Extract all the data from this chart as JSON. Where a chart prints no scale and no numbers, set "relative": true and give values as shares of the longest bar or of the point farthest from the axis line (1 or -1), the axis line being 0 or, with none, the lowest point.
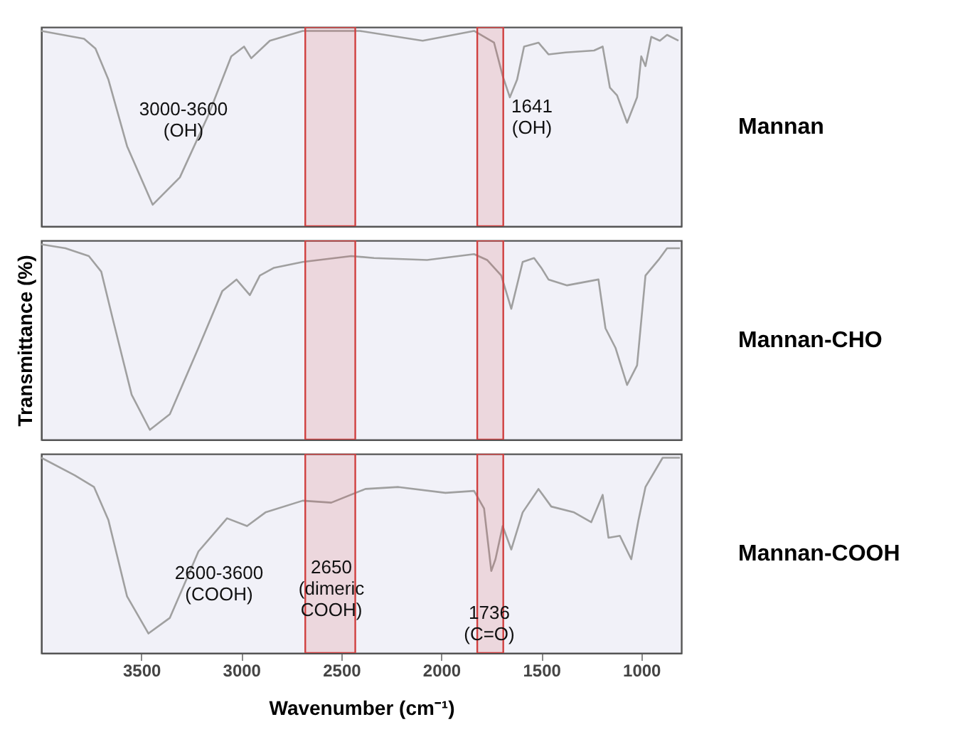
{
  "chart_data": [
    {
      "type": "line",
      "relative": true,
      "xlim": [
        4000,
        800
      ],
      "xticks": [
        3500,
        3000,
        2500,
        2000,
        1500,
        1000
      ],
      "tick_labels": false,
      "x": [
        4000,
        3786,
        3729,
        3664,
        3571,
        3443,
        3307,
        3164,
        3050,
        2986,
        2950,
        2857,
        2693,
        2407,
        2093,
        1836,
        1736,
        1693,
        1657,
        1621,
        1586,
        1514,
        1464,
        1379,
        1236,
        1193,
        1157,
        1121,
        1071,
        1021,
        1000,
        979,
        950,
        907,
        871,
        814
      ],
      "series": [
        {
          "name": "Mannan",
          "color": "#a0a0a0",
          "values": [
            1,
            0.96,
            0.91,
            0.75,
            0.41,
            0.11,
            0.25,
            0.57,
            0.87,
            0.92,
            0.86,
            0.95,
            1,
            1,
            0.95,
            1,
            0.94,
            0.77,
            0.66,
            0.75,
            0.92,
            0.94,
            0.88,
            0.89,
            0.9,
            0.92,
            0.71,
            0.67,
            0.53,
            0.66,
            0.87,
            0.82,
            0.97,
            0.95,
            0.98,
            0.95
          ]
        }
      ],
      "bands": [
        {
          "axis": "x",
          "from": 2680,
          "to": 2430,
          "color": "#d04040"
        },
        {
          "axis": "x",
          "from": 1820,
          "to": 1690,
          "color": "#d04040"
        }
      ],
      "annotations": [
        "3000-3600\n(OH)",
        "1641\n(OH)"
      ]
    },
    {
      "type": "line",
      "relative": true,
      "xlim": [
        4000,
        800
      ],
      "xticks": [
        3500,
        3000,
        2500,
        2000,
        1500,
        1000
      ],
      "tick_labels": false,
      "ylabel": "Transmittance (%)",
      "x": [
        4000,
        3879,
        3762,
        3700,
        3643,
        3548,
        3457,
        3357,
        3214,
        3095,
        3024,
        2957,
        2907,
        2836,
        2693,
        2450,
        2336,
        2071,
        1836,
        1771,
        1700,
        1650,
        1593,
        1536,
        1500,
        1464,
        1371,
        1214,
        1179,
        1129,
        1071,
        1021,
        979,
        914,
        871,
        807
      ],
      "series": [
        {
          "name": "Mannan-CHO",
          "color": "#a0a0a0",
          "values": [
            1,
            0.98,
            0.94,
            0.86,
            0.62,
            0.23,
            0.05,
            0.13,
            0.47,
            0.76,
            0.82,
            0.74,
            0.84,
            0.88,
            0.91,
            0.94,
            0.93,
            0.92,
            0.95,
            0.92,
            0.84,
            0.67,
            0.91,
            0.93,
            0.88,
            0.82,
            0.79,
            0.82,
            0.57,
            0.47,
            0.28,
            0.38,
            0.84,
            0.92,
            0.98,
            0.98
          ]
        }
      ],
      "bands": [
        {
          "axis": "x",
          "from": 2680,
          "to": 2430,
          "color": "#d04040"
        },
        {
          "axis": "x",
          "from": 1820,
          "to": 1690,
          "color": "#d04040"
        }
      ]
    },
    {
      "type": "line",
      "relative": true,
      "xlim": [
        4000,
        800
      ],
      "xticks": [
        3500,
        3000,
        2500,
        2000,
        1500,
        1000
      ],
      "tick_labels": "x",
      "xlabel": "Wavenumber (cm⁻¹)",
      "x": [
        4000,
        3833,
        3736,
        3664,
        3571,
        3464,
        3357,
        3214,
        3071,
        2971,
        2879,
        2693,
        2550,
        2379,
        2214,
        1979,
        1836,
        1786,
        1750,
        1729,
        1693,
        1650,
        1593,
        1514,
        1450,
        1336,
        1250,
        1193,
        1164,
        1107,
        1050,
        1014,
        979,
        893,
        807
      ],
      "series": [
        {
          "name": "Mannan-COOH",
          "color": "#a0a0a0",
          "values": [
            1,
            0.91,
            0.85,
            0.68,
            0.29,
            0.1,
            0.18,
            0.52,
            0.69,
            0.65,
            0.72,
            0.78,
            0.77,
            0.84,
            0.85,
            0.82,
            0.83,
            0.74,
            0.42,
            0.48,
            0.65,
            0.53,
            0.72,
            0.84,
            0.75,
            0.72,
            0.67,
            0.81,
            0.59,
            0.6,
            0.48,
            0.68,
            0.85,
            1,
            1
          ]
        }
      ],
      "bands": [
        {
          "axis": "x",
          "from": 2680,
          "to": 2430,
          "color": "#d04040"
        },
        {
          "axis": "x",
          "from": 1820,
          "to": 1690,
          "color": "#d04040"
        }
      ],
      "annotations": [
        "2600-3600\n(COOH)",
        "2650\n(dimeric\nCOOH)",
        "1736\n(C=O)"
      ]
    }
  ]
}
